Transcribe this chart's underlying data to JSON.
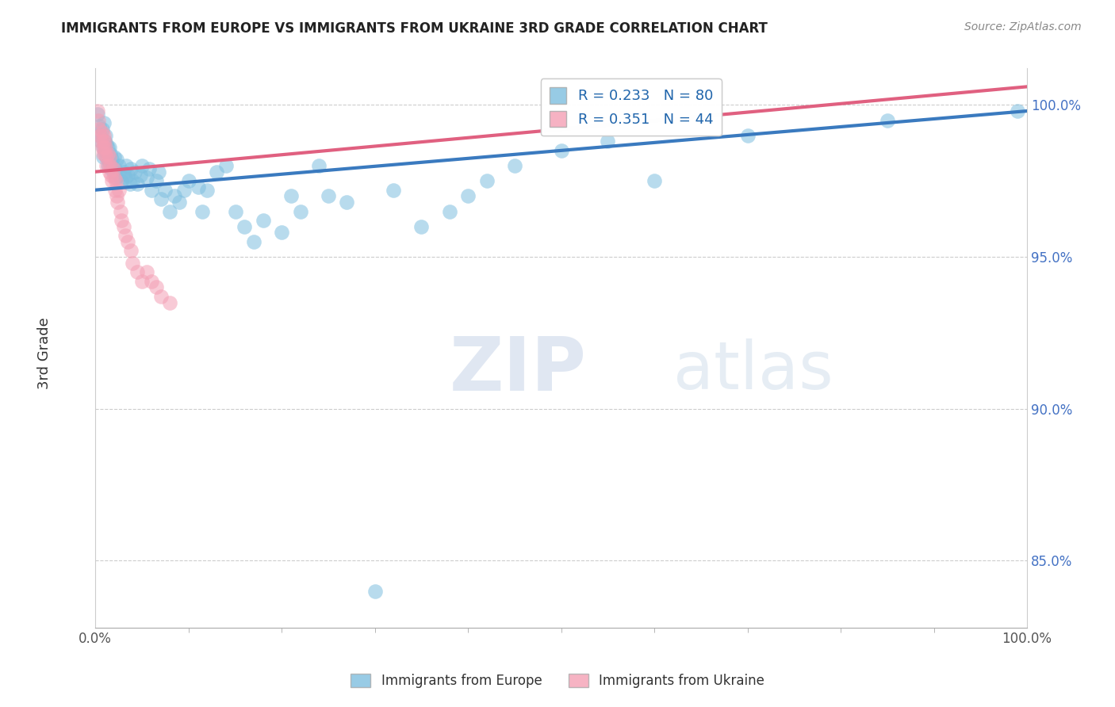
{
  "title": "IMMIGRANTS FROM EUROPE VS IMMIGRANTS FROM UKRAINE 3RD GRADE CORRELATION CHART",
  "source": "Source: ZipAtlas.com",
  "ylabel": "3rd Grade",
  "xlim": [
    0.0,
    1.0
  ],
  "ylim": [
    0.828,
    1.012
  ],
  "yticks": [
    0.85,
    0.9,
    0.95,
    1.0
  ],
  "ytick_labels": [
    "85.0%",
    "90.0%",
    "95.0%",
    "100.0%"
  ],
  "legend1_label": "R = 0.233   N = 80",
  "legend2_label": "R = 0.351   N = 44",
  "legend_bottom_label1": "Immigrants from Europe",
  "legend_bottom_label2": "Immigrants from Ukraine",
  "blue_color": "#7fbfdf",
  "pink_color": "#f4a0b5",
  "blue_line_color": "#3a7abf",
  "pink_line_color": "#e06080",
  "blue_line_x0": 0.0,
  "blue_line_y0": 0.972,
  "blue_line_x1": 1.0,
  "blue_line_y1": 0.998,
  "pink_line_x0": 0.0,
  "pink_line_y0": 0.978,
  "pink_line_x1": 1.0,
  "pink_line_y1": 1.006,
  "blue_dots_x": [
    0.002,
    0.004,
    0.005,
    0.006,
    0.007,
    0.008,
    0.008,
    0.009,
    0.01,
    0.01,
    0.011,
    0.012,
    0.012,
    0.013,
    0.013,
    0.014,
    0.015,
    0.015,
    0.016,
    0.017,
    0.018,
    0.019,
    0.02,
    0.021,
    0.022,
    0.023,
    0.025,
    0.026,
    0.028,
    0.03,
    0.032,
    0.033,
    0.035,
    0.037,
    0.038,
    0.04,
    0.042,
    0.045,
    0.048,
    0.05,
    0.055,
    0.058,
    0.06,
    0.065,
    0.068,
    0.07,
    0.075,
    0.08,
    0.085,
    0.09,
    0.095,
    0.1,
    0.11,
    0.115,
    0.12,
    0.13,
    0.14,
    0.15,
    0.16,
    0.17,
    0.18,
    0.2,
    0.21,
    0.22,
    0.24,
    0.25,
    0.27,
    0.3,
    0.32,
    0.35,
    0.38,
    0.4,
    0.42,
    0.45,
    0.5,
    0.55,
    0.6,
    0.7,
    0.85,
    0.99
  ],
  "blue_dots_y": [
    0.997,
    0.993,
    0.99,
    0.988,
    0.992,
    0.986,
    0.983,
    0.994,
    0.988,
    0.985,
    0.99,
    0.987,
    0.983,
    0.986,
    0.98,
    0.983,
    0.986,
    0.981,
    0.984,
    0.979,
    0.982,
    0.978,
    0.983,
    0.979,
    0.976,
    0.982,
    0.98,
    0.977,
    0.975,
    0.978,
    0.976,
    0.98,
    0.977,
    0.974,
    0.979,
    0.975,
    0.978,
    0.974,
    0.977,
    0.98,
    0.976,
    0.979,
    0.972,
    0.975,
    0.978,
    0.969,
    0.972,
    0.965,
    0.97,
    0.968,
    0.972,
    0.975,
    0.973,
    0.965,
    0.972,
    0.978,
    0.98,
    0.965,
    0.96,
    0.955,
    0.962,
    0.958,
    0.97,
    0.965,
    0.98,
    0.97,
    0.968,
    0.84,
    0.972,
    0.96,
    0.965,
    0.97,
    0.975,
    0.98,
    0.985,
    0.988,
    0.975,
    0.99,
    0.995,
    0.998
  ],
  "pink_dots_x": [
    0.002,
    0.003,
    0.004,
    0.005,
    0.006,
    0.007,
    0.007,
    0.008,
    0.008,
    0.009,
    0.009,
    0.01,
    0.01,
    0.011,
    0.012,
    0.012,
    0.013,
    0.014,
    0.015,
    0.015,
    0.016,
    0.017,
    0.018,
    0.019,
    0.02,
    0.021,
    0.022,
    0.023,
    0.024,
    0.025,
    0.027,
    0.028,
    0.03,
    0.032,
    0.035,
    0.038,
    0.04,
    0.045,
    0.05,
    0.055,
    0.06,
    0.065,
    0.07,
    0.08
  ],
  "pink_dots_y": [
    0.998,
    0.995,
    0.992,
    0.99,
    0.988,
    0.991,
    0.986,
    0.988,
    0.984,
    0.99,
    0.986,
    0.988,
    0.984,
    0.986,
    0.983,
    0.98,
    0.984,
    0.98,
    0.983,
    0.978,
    0.98,
    0.977,
    0.975,
    0.979,
    0.976,
    0.972,
    0.975,
    0.97,
    0.968,
    0.972,
    0.965,
    0.962,
    0.96,
    0.957,
    0.955,
    0.952,
    0.948,
    0.945,
    0.942,
    0.945,
    0.942,
    0.94,
    0.937,
    0.935
  ]
}
